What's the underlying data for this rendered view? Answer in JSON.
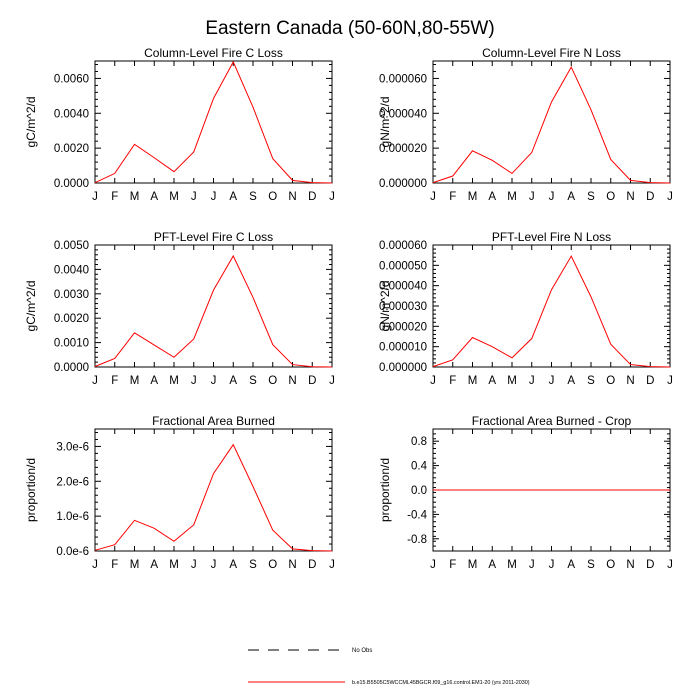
{
  "title": "Eastern Canada (50-60N,80-55W)",
  "months": [
    "J",
    "F",
    "M",
    "A",
    "M",
    "J",
    "J",
    "A",
    "S",
    "O",
    "N",
    "D",
    "J"
  ],
  "chart_data": [
    {
      "type": "line",
      "title": "Column-Level Fire C Loss",
      "ylabel": "gC/m^2/d",
      "ylim": [
        0,
        0.007
      ],
      "yticks": [
        0,
        0.002,
        0.004,
        0.006
      ],
      "ytick_labels": [
        "0.0000",
        "0.0020",
        "0.0040",
        "0.0060"
      ],
      "x": [
        0,
        1,
        2,
        3,
        4,
        5,
        6,
        7,
        8,
        9,
        10,
        11,
        12
      ],
      "values": [
        2e-05,
        0.00055,
        0.00222,
        0.00145,
        0.00065,
        0.00178,
        0.00485,
        0.00695,
        0.00435,
        0.0014,
        0.00015,
        2e-05,
        0.0
      ]
    },
    {
      "type": "line",
      "title": "Column-Level Fire N Loss",
      "ylabel": "gN/m^2/d",
      "ylim": [
        0,
        7e-05
      ],
      "yticks": [
        0,
        2e-05,
        4e-05,
        6e-05
      ],
      "ytick_labels": [
        "0.000000",
        "0.000020",
        "0.000040",
        "0.000060"
      ],
      "x": [
        0,
        1,
        2,
        3,
        4,
        5,
        6,
        7,
        8,
        9,
        10,
        11,
        12
      ],
      "values": [
        2e-07,
        4e-06,
        1.85e-05,
        1.3e-05,
        5.5e-06,
        1.75e-05,
        4.65e-05,
        6.65e-05,
        4.2e-05,
        1.35e-05,
        1.5e-06,
        2e-07,
        0.0
      ]
    },
    {
      "type": "line",
      "title": "PFT-Level Fire C Loss",
      "ylabel": "gC/m^2/d",
      "ylim": [
        0,
        0.005
      ],
      "yticks": [
        0,
        0.001,
        0.002,
        0.003,
        0.004,
        0.005
      ],
      "ytick_labels": [
        "0.0000",
        "0.0010",
        "0.0020",
        "0.0030",
        "0.0040",
        "0.0050"
      ],
      "x": [
        0,
        1,
        2,
        3,
        4,
        5,
        6,
        7,
        8,
        9,
        10,
        11,
        12
      ],
      "values": [
        2e-05,
        0.00035,
        0.0014,
        0.0009,
        0.0004,
        0.00115,
        0.00315,
        0.00455,
        0.00285,
        0.00092,
        0.0001,
        1e-05,
        0.0
      ]
    },
    {
      "type": "line",
      "title": "PFT-Level Fire N Loss",
      "ylabel": "gN/m^2/d",
      "ylim": [
        0,
        6e-05
      ],
      "yticks": [
        0,
        1e-05,
        2e-05,
        3e-05,
        4e-05,
        5e-05,
        6e-05
      ],
      "ytick_labels": [
        "0.000000",
        "0.000010",
        "0.000020",
        "0.000030",
        "0.000040",
        "0.000050",
        "0.000060"
      ],
      "x": [
        0,
        1,
        2,
        3,
        4,
        5,
        6,
        7,
        8,
        9,
        10,
        11,
        12
      ],
      "values": [
        2e-07,
        3.5e-06,
        1.45e-05,
        1e-05,
        4.5e-06,
        1.4e-05,
        3.8e-05,
        5.45e-05,
        3.45e-05,
        1.12e-05,
        1.2e-06,
        2e-07,
        0.0
      ]
    },
    {
      "type": "line",
      "title": "Fractional Area Burned",
      "ylabel": "proportion/d",
      "ylim": [
        0,
        3.5e-06
      ],
      "yticks": [
        0,
        1e-06,
        2e-06,
        3e-06
      ],
      "ytick_labels": [
        "0.0e-6",
        "1.0e-6",
        "2.0e-6",
        "3.0e-6"
      ],
      "x": [
        0,
        1,
        2,
        3,
        4,
        5,
        6,
        7,
        8,
        9,
        10,
        11,
        12
      ],
      "values": [
        2e-08,
        1.8e-07,
        8.8e-07,
        6.5e-07,
        2.8e-07,
        7.5e-07,
        2.22e-06,
        3.05e-06,
        1.85e-06,
        6e-07,
        6e-08,
        1e-08,
        0.0
      ]
    },
    {
      "type": "line",
      "title": "Fractional Area Burned - Crop",
      "ylabel": "proportion/d",
      "ylim": [
        -1,
        1
      ],
      "yticks": [
        -0.8,
        -0.4,
        0,
        0.4,
        0.8
      ],
      "ytick_labels": [
        "-0.8",
        "-0.4",
        "0.0",
        "0.4",
        "0.8"
      ],
      "x": [
        0,
        1,
        2,
        3,
        4,
        5,
        6,
        7,
        8,
        9,
        10,
        11,
        12
      ],
      "values": [
        0,
        0,
        0,
        0,
        0,
        0,
        0,
        0,
        0,
        0,
        0,
        0,
        0
      ]
    }
  ],
  "legend": {
    "entries": [
      {
        "label": "No Obs",
        "style": "dashed",
        "color": "#000000"
      },
      {
        "label": "b.e15.B5505C5WCCML45BGCR.f09_g16.control.EM1-20 (yrs 2011-2030)",
        "style": "solid",
        "color": "#ff0000"
      }
    ]
  },
  "colors": {
    "line": "#ff0000",
    "axis": "#000000"
  }
}
